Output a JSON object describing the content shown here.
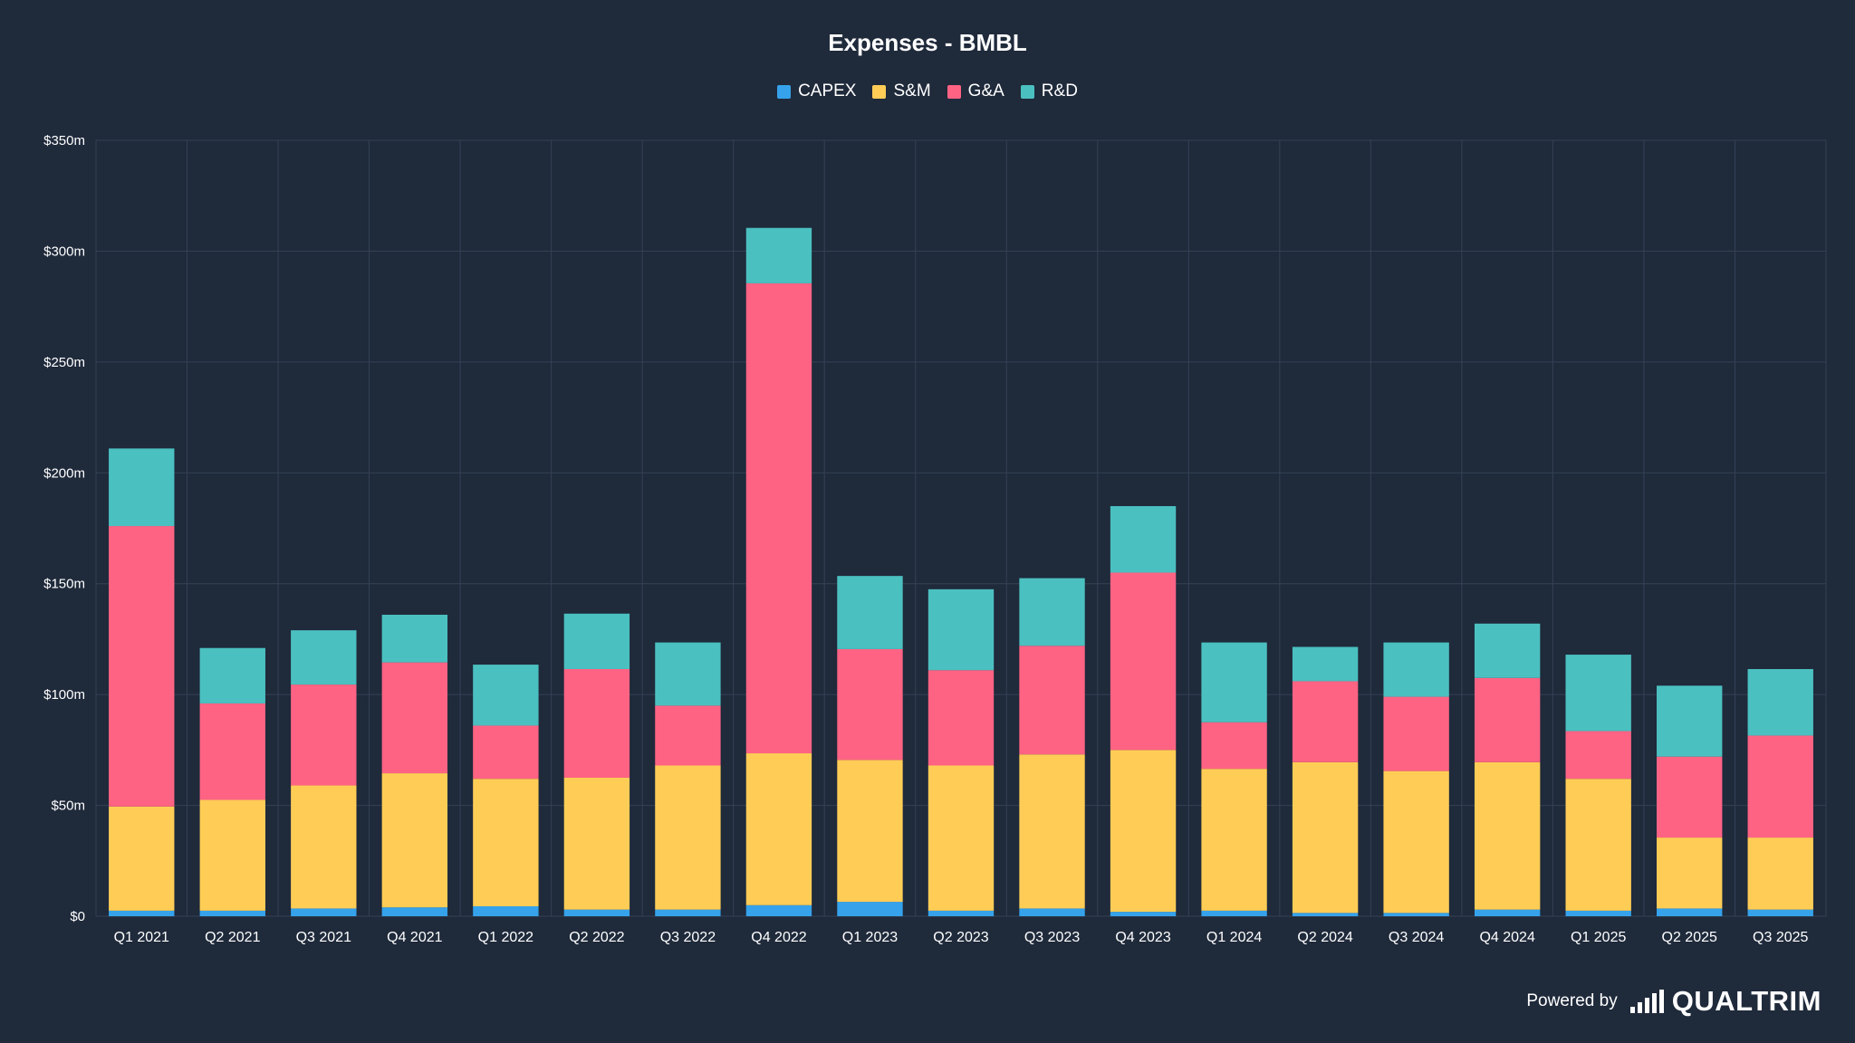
{
  "colors": {
    "background": "#1f2a3b",
    "grid": "#344256",
    "text": "#ffffff",
    "CAPEX": "#35a2eb",
    "S&M": "#ffcd56",
    "G&A": "#ff6384",
    "R&D": "#4bc0c0"
  },
  "footer": {
    "powered_by": "Powered by",
    "brand": "QUALTRIM",
    "brand_icon": "bar-chart-logo-icon"
  },
  "chart_data": {
    "type": "bar",
    "stacked": true,
    "title": "Expenses - BMBL",
    "legend_position": "top-center",
    "grid": true,
    "ylim": [
      0,
      350
    ],
    "y_ticks": [
      "$0",
      "$50m",
      "$100m",
      "$150m",
      "$200m",
      "$250m",
      "$300m",
      "$350m"
    ],
    "categories": [
      "Q1 2021",
      "Q2 2021",
      "Q3 2021",
      "Q4 2021",
      "Q1 2022",
      "Q2 2022",
      "Q3 2022",
      "Q4 2022",
      "Q1 2023",
      "Q2 2023",
      "Q3 2023",
      "Q4 2023",
      "Q1 2024",
      "Q2 2024",
      "Q3 2024",
      "Q4 2024",
      "Q1 2025",
      "Q2 2025",
      "Q3 2025"
    ],
    "series": [
      {
        "name": "CAPEX",
        "values": [
          2.5,
          2.5,
          3.5,
          4,
          4.5,
          3,
          3,
          5,
          6.5,
          2.5,
          3.5,
          2,
          2.5,
          1.5,
          1.5,
          3,
          2.5,
          3.5,
          3
        ]
      },
      {
        "name": "S&M",
        "values": [
          47,
          50,
          55.5,
          60.5,
          57.5,
          59.5,
          65,
          68.5,
          64,
          65.5,
          69.5,
          73,
          64,
          68,
          64,
          66.5,
          59.5,
          32,
          32.5
        ]
      },
      {
        "name": "G&A",
        "values": [
          126.5,
          43.5,
          45.5,
          50,
          24,
          49,
          27,
          212,
          50,
          43,
          49,
          80,
          21,
          36.5,
          33.5,
          38,
          21.5,
          36.5,
          46
        ]
      },
      {
        "name": "R&D",
        "values": [
          35,
          25,
          24.5,
          21.5,
          27.5,
          25,
          28.5,
          25,
          33,
          36.5,
          30.5,
          30,
          36,
          15.5,
          24.5,
          24.5,
          34.5,
          32,
          30
        ]
      }
    ]
  }
}
